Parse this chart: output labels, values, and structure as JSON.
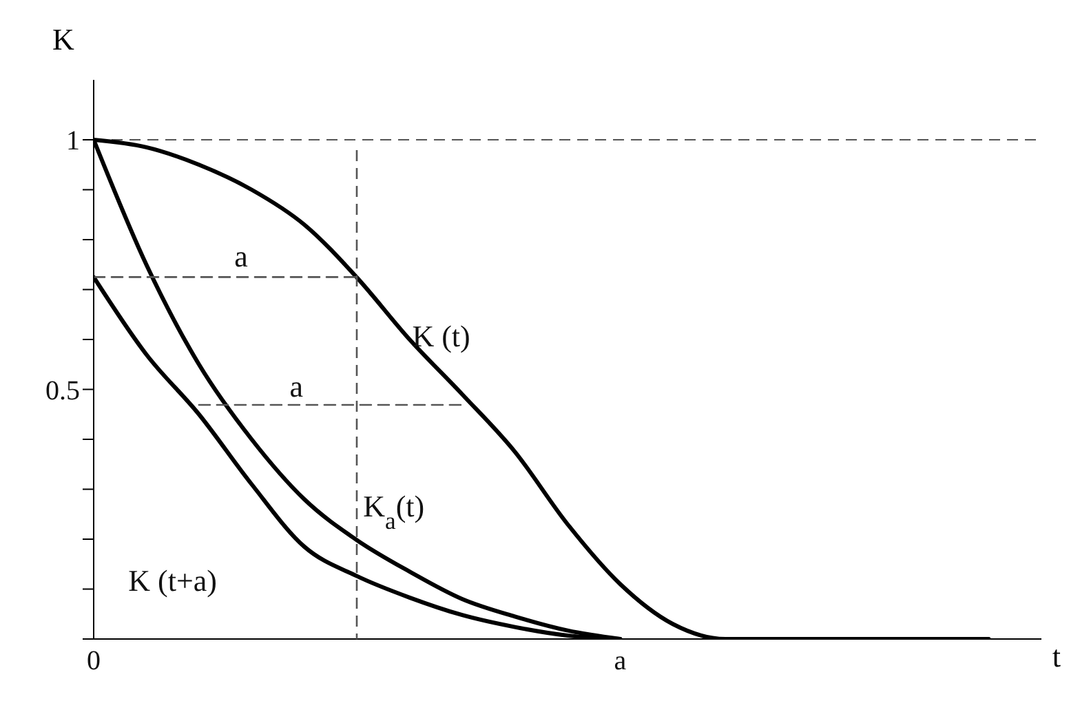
{
  "chart_data": {
    "type": "line",
    "xlabel": "t",
    "ylabel": "K",
    "categories": [
      "0",
      null,
      null,
      null,
      null,
      null,
      null,
      null,
      null,
      null,
      "a",
      null,
      null,
      null,
      null,
      null,
      null,
      null,
      null
    ],
    "ylim": [
      0,
      1.12
    ],
    "yticks": [
      {
        "value": 0,
        "label": null
      },
      {
        "value": 0.1,
        "label": null
      },
      {
        "value": 0.2,
        "label": null
      },
      {
        "value": 0.3,
        "label": null
      },
      {
        "value": 0.4,
        "label": null
      },
      0.5,
      {
        "value": 0.6,
        "label": null
      },
      {
        "value": 0.7,
        "label": null
      },
      {
        "value": 0.8,
        "label": null
      },
      {
        "value": 0.9,
        "label": null
      },
      1
    ],
    "marker": "none",
    "series": [
      {
        "color": "#000000",
        "line_style": "solid",
        "values": [
          1,
          0.985,
          0.95,
          0.9,
          0.83,
          0.724,
          0.6,
          0.49,
          0.375,
          0.23,
          0.11,
          0.03,
          0,
          0,
          0,
          0,
          0,
          0,
          null
        ]
      },
      {
        "color": "#000000",
        "line_style": "solid",
        "values": [
          1,
          0.75,
          0.55,
          0.4,
          0.28,
          0.198,
          0.135,
          0.08,
          0.045,
          0.017,
          0,
          null,
          null,
          null,
          null,
          null,
          null,
          null,
          null
        ]
      },
      {
        "color": "#000000",
        "line_style": "solid",
        "values": [
          0.725,
          0.57,
          0.45,
          0.31,
          0.185,
          0.126,
          0.083,
          0.048,
          0.024,
          0.007,
          0,
          null,
          null,
          null,
          null,
          null,
          null,
          null,
          null
        ]
      },
      {
        "color": "#555555",
        "line_style": "dashed",
        "values": [
          0.725,
          0.725,
          0.725,
          0.725,
          0.725,
          0.725,
          null,
          null,
          null,
          null,
          null,
          null,
          null,
          null,
          null,
          null,
          null,
          null,
          null
        ]
      },
      {
        "color": "#555555",
        "line_style": "dashed",
        "values": [
          null,
          null,
          0.469,
          0.469,
          0.469,
          0.469,
          0.469,
          0.469,
          null,
          null,
          null,
          null,
          null,
          null,
          null,
          null,
          null,
          null,
          null
        ]
      }
    ],
    "ref_lines": [
      {
        "axis": "y",
        "value": 1,
        "color": "#555555",
        "line_style": "dashed"
      }
    ],
    "annotations": [
      "K (t)",
      "K$_{a}$(t)",
      "K (t+a)",
      "a",
      "a"
    ]
  }
}
